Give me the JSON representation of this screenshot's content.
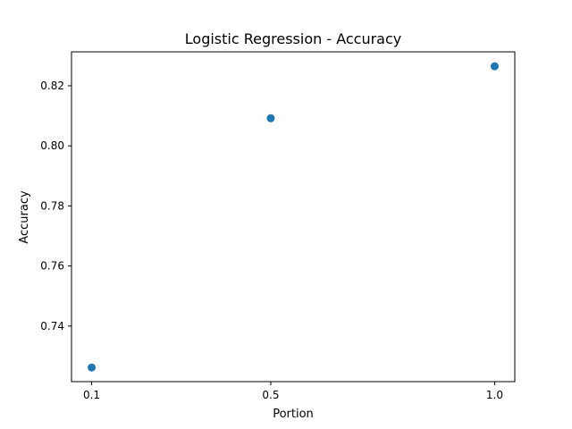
{
  "chart_data": {
    "type": "scatter",
    "title": "Logistic Regression - Accuracy",
    "xlabel": "Portion",
    "ylabel": "Accuracy",
    "x_ticks": [
      "0.1",
      "0.5",
      "1.0"
    ],
    "y_ticks": [
      "0.74",
      "0.76",
      "0.78",
      "0.80",
      "0.82"
    ],
    "xlim": [
      0.055,
      1.045
    ],
    "ylim": [
      0.7215,
      0.8313
    ],
    "grid": false,
    "marker_color": "#1f77b4",
    "series": [
      {
        "points": [
          {
            "x": 0.1,
            "y": 0.7262
          },
          {
            "x": 0.5,
            "y": 0.8092
          },
          {
            "x": 1.0,
            "y": 0.8265
          }
        ]
      }
    ]
  }
}
